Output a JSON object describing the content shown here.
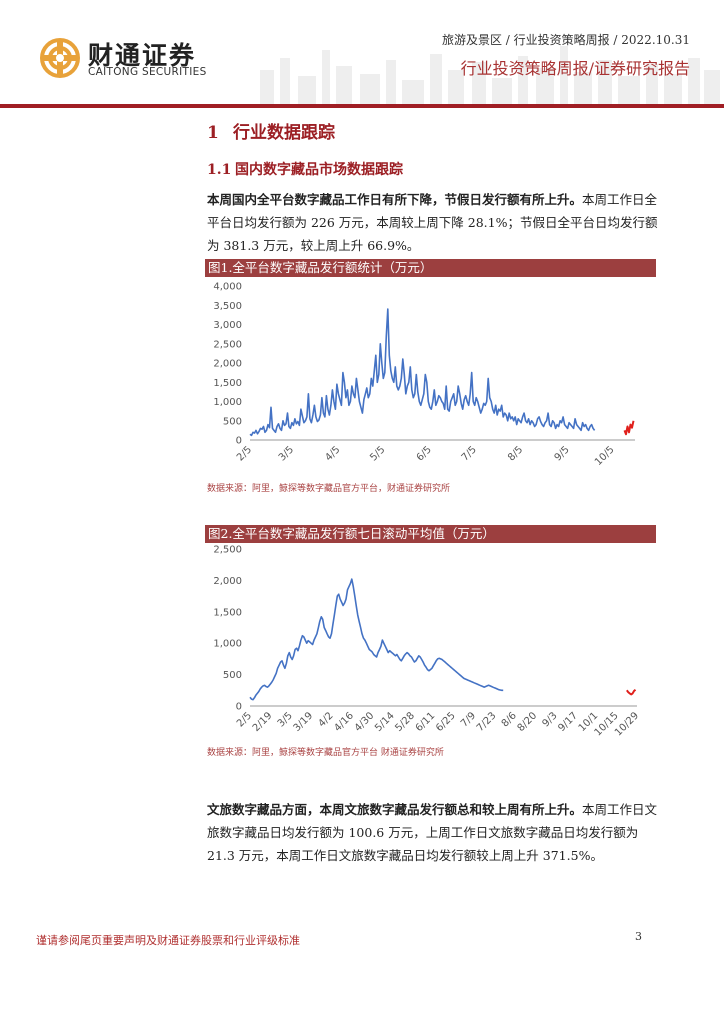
{
  "header": {
    "logo_cn": "财通证券",
    "logo_en": "CAITONG SECURITIES",
    "meta": "旅游及景区 / 行业投资策略周报 / 2022.10.31",
    "report_type": "行业投资策略周报/证券研究报告",
    "colors": {
      "brand_red": "#a01e24",
      "logo_orange": "#e8a23a"
    }
  },
  "section": {
    "number": "1",
    "title": "行业数据跟踪"
  },
  "subsection": {
    "number": "1.1",
    "title": "国内数字藏品市场数据跟踪"
  },
  "paragraph1": {
    "bold": "本周国内全平台数字藏品工作日有所下降，节假日发行额有所上升。",
    "rest": "本周工作日全平台日均发行额为 226 万元，本周较上周下降 28.1%；节假日全平台日均发行额为 381.3 万元，较上周上升 66.9%。"
  },
  "figure1": {
    "caption": "图1.全平台数字藏品发行额统计（万元）",
    "source": "数据来源：阿里，鲸探等数字藏品官方平台，财通证券研究所"
  },
  "figure2": {
    "caption": "图2.全平台数字藏品发行额七日滚动平均值（万元）",
    "source": "数据来源：阿里，鲸探等数字藏品官方平台 财通证券研究所"
  },
  "paragraph2": {
    "bold": "文旅数字藏品方面，本周文旅数字藏品发行额总和较上周有所上升。",
    "rest": "本周工作日文旅数字藏品日均发行额为 100.6 万元，上周工作日文旅数字藏品日均发行额为 21.3 万元，本周工作日文旅数字藏品日均发行额较上周上升 371.5%。"
  },
  "footer": {
    "disclaimer": "谨请参阅尾页重要声明及财通证券股票和行业评级标准",
    "page": "3"
  },
  "chart_data": [
    {
      "type": "line",
      "title": "图1.全平台数字藏品发行额统计（万元）",
      "ylim": [
        0,
        4000
      ],
      "yticks": [
        "0",
        "500",
        "1,000",
        "1,500",
        "2,000",
        "2,500",
        "3,000",
        "3,500",
        "4,000"
      ],
      "xticks": [
        "2/5",
        "3/5",
        "4/5",
        "5/5",
        "6/5",
        "7/5",
        "8/5",
        "9/5",
        "10/5"
      ],
      "tick_days": [
        0,
        28,
        59,
        89,
        120,
        150,
        181,
        212,
        242
      ],
      "colors": {
        "main": "#4472c4",
        "highlight": "#e0201c"
      },
      "series": [
        {
          "values": [
            150,
            120,
            200,
            180,
            250,
            160,
            220,
            300,
            280,
            350,
            200,
            250,
            400,
            320,
            850,
            300,
            250,
            200,
            350,
            420,
            300,
            250,
            500,
            380,
            420,
            700,
            350,
            300,
            450,
            380,
            550,
            420,
            480,
            380,
            800,
            620,
            450,
            500,
            600,
            1200,
            550,
            450,
            650,
            900,
            600,
            480,
            520,
            650,
            1100,
            700,
            600,
            1150,
            800,
            650,
            900,
            1300,
            1000,
            800,
            1450,
            1200,
            1050,
            900,
            1750,
            1500,
            1100,
            1300,
            900,
            1000,
            1400,
            1200,
            1100,
            1600,
            1300,
            1000,
            850,
            700,
            1050,
            1200,
            1350,
            1100,
            1200,
            1600,
            1400,
            1800,
            2200,
            1500,
            1700,
            2500,
            2000,
            1600,
            1750,
            2700,
            3400,
            2200,
            1800,
            1600,
            1500,
            1900,
            1400,
            1300,
            1400,
            1600,
            2100,
            1700,
            1200,
            1400,
            1500,
            1900,
            1300,
            1100,
            1200,
            1700,
            1250,
            1000,
            900,
            1050,
            1200,
            1700,
            1500,
            1000,
            850,
            800,
            1000,
            1300,
            900,
            1000,
            1150,
            1100,
            1000,
            950,
            800,
            1400,
            800,
            750,
            1000,
            1100,
            1200,
            900,
            1000,
            1400,
            1200,
            950,
            800,
            1050,
            1150,
            1000,
            900,
            1200,
            1750,
            1000,
            900,
            1100,
            1000,
            850,
            700,
            800,
            950,
            900,
            1000,
            1600,
            1100,
            1000,
            800,
            700,
            900,
            650,
            800,
            750,
            900,
            600,
            700,
            650,
            500,
            700,
            550,
            600,
            500,
            600,
            400,
            550,
            500,
            450,
            600,
            700,
            500,
            450,
            550,
            400,
            500,
            450,
            350,
            400,
            550,
            600,
            480,
            400,
            350,
            450,
            500,
            700,
            400,
            350,
            500,
            450,
            300,
            400,
            350,
            500,
            450,
            600,
            400,
            350,
            300,
            450,
            400,
            350,
            300,
            550,
            400,
            350,
            300,
            250,
            450,
            350,
            400,
            300,
            250,
            350,
            400,
            300,
            250
          ]
        },
        {
          "name_hint": "",
          "start_day": 250,
          "values": [
            250,
            150,
            350,
            200,
            400,
            320,
            500
          ]
        }
      ]
    },
    {
      "type": "line",
      "title": "图2.全平台数字藏品发行额七日滚动平均值（万元）",
      "ylim": [
        0,
        2500
      ],
      "yticks": [
        "0",
        "500",
        "1,000",
        "1,500",
        "2,000",
        "2,500"
      ],
      "xticks": [
        "2/5",
        "2/19",
        "3/5",
        "3/19",
        "4/2",
        "4/16",
        "4/30",
        "5/14",
        "5/28",
        "6/11",
        "6/25",
        "7/9",
        "7/23",
        "8/6",
        "8/20",
        "9/3",
        "9/17",
        "10/1",
        "10/15",
        "10/29"
      ],
      "tick_days": [
        0,
        14,
        28,
        42,
        56,
        70,
        84,
        98,
        112,
        126,
        140,
        154,
        168,
        182,
        196,
        210,
        224,
        238,
        252,
        266
      ],
      "colors": {
        "main": "#4472c4",
        "highlight": "#e0201c"
      },
      "series": [
        {
          "values": [
            140,
            110,
            100,
            130,
            170,
            200,
            230,
            270,
            300,
            320,
            330,
            310,
            300,
            320,
            350,
            380,
            420,
            470,
            520,
            600,
            650,
            700,
            720,
            650,
            600,
            680,
            800,
            850,
            780,
            740,
            800,
            900,
            920,
            880,
            960,
            1050,
            1120,
            1100,
            1050,
            1000,
            1040,
            1020,
            1000,
            980,
            1050,
            1100,
            1150,
            1250,
            1350,
            1420,
            1380,
            1250,
            1200,
            1150,
            1100,
            1080,
            1150,
            1300,
            1450,
            1600,
            1750,
            1780,
            1700,
            1650,
            1600,
            1640,
            1700,
            1850,
            1900,
            1950,
            2020,
            1900,
            1750,
            1600,
            1450,
            1350,
            1250,
            1150,
            1080,
            1050,
            1000,
            950,
            900,
            880,
            860,
            820,
            800,
            780,
            850,
            900,
            950,
            1050,
            1000,
            950,
            900,
            850,
            880,
            860,
            840,
            820,
            800,
            820,
            780,
            740,
            720,
            760,
            800,
            830,
            850,
            830,
            800,
            780,
            740,
            700,
            720,
            760,
            800,
            780,
            740,
            700,
            650,
            620,
            580,
            560,
            580,
            600,
            640,
            680,
            720,
            750,
            760,
            750,
            740,
            720,
            700,
            680,
            660,
            640,
            620,
            600,
            580,
            560,
            540,
            520,
            500,
            480,
            460,
            440,
            430,
            420,
            410,
            400,
            390,
            380,
            370,
            360,
            350,
            340,
            330,
            320,
            310,
            300,
            310,
            320,
            330,
            320,
            310,
            300,
            290,
            280,
            270,
            260,
            255,
            250,
            250
          ]
        },
        {
          "start_day": 259,
          "values": [
            250,
            220,
            200,
            185,
            200,
            240,
            260
          ]
        }
      ]
    }
  ]
}
